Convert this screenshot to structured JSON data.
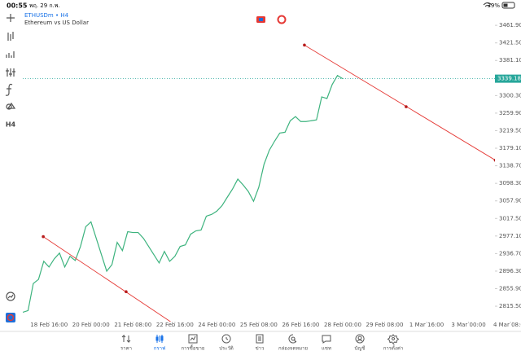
{
  "status_bar": {
    "time": "00:55",
    "date": "พฤ. 29 ก.พ.",
    "battery": "39%"
  },
  "toolbar": {
    "timeframe": "H4"
  },
  "chart_data": {
    "type": "line",
    "symbol": "ETHUSDm • H4",
    "description": "Ethereum vs US Dollar",
    "color": "#3db37e",
    "x": [
      -5,
      -4,
      -3,
      -2,
      -1,
      0,
      1,
      2,
      3,
      4,
      5,
      6,
      7,
      8,
      9,
      10,
      11,
      12,
      13,
      14,
      15,
      16,
      17,
      18,
      19,
      20,
      21,
      22,
      23,
      24,
      25,
      26,
      27,
      28,
      29,
      30,
      31,
      32,
      33,
      34,
      35,
      36,
      37,
      38,
      39,
      40,
      41,
      42,
      43,
      44,
      45,
      46,
      47,
      48,
      49,
      50,
      51,
      52,
      53,
      54,
      55,
      56
    ],
    "values": [
      2801.6,
      2805.4,
      2867.8,
      2877.3,
      2918.9,
      2905.7,
      2924.6,
      2937.8,
      2905.7,
      2930.3,
      2920.8,
      2953.0,
      2998.4,
      3009.7,
      2971.9,
      2934.0,
      2896.2,
      2911.3,
      2962.4,
      2943.5,
      2987.0,
      2985.1,
      2985.1,
      2971.9,
      2953.0,
      2934.0,
      2915.1,
      2941.6,
      2918.9,
      2930.3,
      2953.0,
      2956.7,
      2981.3,
      2988.9,
      2990.8,
      3022.8,
      3026.7,
      3034.3,
      3047.2,
      3066.5,
      3085.4,
      3108.1,
      3094.9,
      3079.7,
      3057.0,
      3089.2,
      3142.2,
      3174.3,
      3195.1,
      3214.0,
      3215.9,
      3242.4,
      3251.9,
      3240.5,
      3240.5,
      3242.4,
      3244.3,
      3297.3,
      3293.5,
      3325.7,
      3346.5,
      3339.2
    ],
    "xlim": [
      -5,
      90
    ],
    "xticks": [
      {
        "value": 0,
        "label": "18 Feb 16:00"
      },
      {
        "value": 8,
        "label": "20 Feb 00:00"
      },
      {
        "value": 16,
        "label": "21 Feb 08:00"
      },
      {
        "value": 24,
        "label": "22 Feb 16:00"
      },
      {
        "value": 32,
        "label": "24 Feb 00:00"
      },
      {
        "value": 40,
        "label": "25 Feb 08:00"
      },
      {
        "value": 48,
        "label": "26 Feb 16:00"
      },
      {
        "value": 56,
        "label": "28 Feb 00:00"
      },
      {
        "value": 64,
        "label": "29 Feb 08:00"
      },
      {
        "value": 72,
        "label": "1 Mar 16:00"
      },
      {
        "value": 80,
        "label": "3 Mar 00:00"
      },
      {
        "value": 88,
        "label": "4 Mar 08:00"
      }
    ],
    "ylim": [
      2780,
      3494
    ],
    "yticks": [
      {
        "value": 2815.5,
        "label": "2815.50"
      },
      {
        "value": 2855.9,
        "label": "2855.90"
      },
      {
        "value": 2896.3,
        "label": "2896.30"
      },
      {
        "value": 2936.7,
        "label": "2936.70"
      },
      {
        "value": 2977.1,
        "label": "2977.10"
      },
      {
        "value": 3017.5,
        "label": "3017.50"
      },
      {
        "value": 3057.9,
        "label": "3057.90"
      },
      {
        "value": 3098.3,
        "label": "3098.30"
      },
      {
        "value": 3138.7,
        "label": "3138.70"
      },
      {
        "value": 3179.1,
        "label": "3179.10"
      },
      {
        "value": 3219.5,
        "label": "3219.50"
      },
      {
        "value": 3259.9,
        "label": "3259.90"
      },
      {
        "value": 3300.3,
        "label": "3300.30"
      },
      {
        "value": 3381.1,
        "label": "3381.10"
      },
      {
        "value": 3421.5,
        "label": "3421.50"
      },
      {
        "value": 3461.9,
        "label": "3461.90"
      }
    ],
    "current_price": {
      "value": 3339.18,
      "label": "3339.18",
      "color": "#26a69a"
    },
    "trend_lines": [
      {
        "color": "#e53935",
        "points": [
          [
            -1.1,
            2975.7
          ],
          [
            24,
            2773.2
          ]
        ],
        "marker": [
          14.7,
          2848.9
        ]
      },
      {
        "color": "#e53935",
        "points": [
          [
            48.7,
            3416.5
          ],
          [
            85.1,
            3151.6
          ]
        ],
        "marker": [
          68.1,
          3274.6
        ]
      }
    ]
  },
  "tabs": {
    "active": 1,
    "items": [
      "ราคา",
      "กราฟ",
      "การซื้อขาย",
      "ประวัติ",
      "ข่าว",
      "กล่องจดหมาย",
      "แชท",
      "บัญชี",
      "การตั้งค่า"
    ]
  }
}
